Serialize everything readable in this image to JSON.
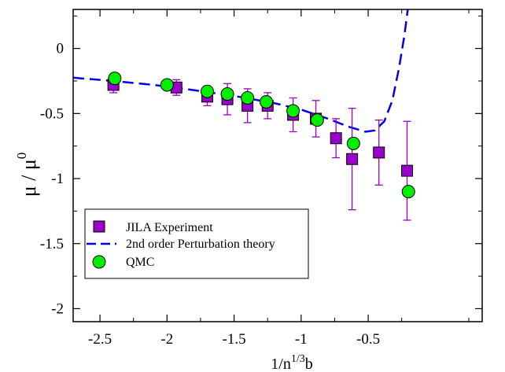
{
  "chart_data": {
    "type": "scatter",
    "xlabel": {
      "main": "1/n",
      "sup": "1/3",
      "sub": "b"
    },
    "ylabel": {
      "main": "μ / μ",
      "sup": "0"
    },
    "xlim": [
      -2.7,
      0.35
    ],
    "ylim": [
      -2.1,
      0.3
    ],
    "x_ticks": [
      {
        "value": -2.5,
        "label": "-2.5"
      },
      {
        "value": -2.0,
        "label": "-2"
      },
      {
        "value": -1.5,
        "label": "-1.5"
      },
      {
        "value": -1.0,
        "label": "-1"
      },
      {
        "value": -0.5,
        "label": "-0.5"
      }
    ],
    "y_ticks": [
      {
        "value": 0.0,
        "label": "0"
      },
      {
        "value": -0.5,
        "label": "-0.5"
      },
      {
        "value": -1.0,
        "label": "-1"
      },
      {
        "value": -1.5,
        "label": "-1.5"
      },
      {
        "value": -2.0,
        "label": "-2"
      }
    ],
    "grid": false,
    "legend_position": "bottom-left",
    "series": [
      {
        "name": "JILA Experiment",
        "marker": "square",
        "color": "#9900cc",
        "points": [
          {
            "x": -2.4,
            "y": -0.28,
            "err": 0.06
          },
          {
            "x": -1.93,
            "y": -0.3,
            "err": 0.06
          },
          {
            "x": -1.7,
            "y": -0.37,
            "err": 0.07
          },
          {
            "x": -1.55,
            "y": -0.39,
            "err": 0.12
          },
          {
            "x": -1.4,
            "y": -0.44,
            "err": 0.13
          },
          {
            "x": -1.25,
            "y": -0.44,
            "err": 0.1
          },
          {
            "x": -1.06,
            "y": -0.51,
            "err": 0.13
          },
          {
            "x": -0.89,
            "y": -0.54,
            "err": 0.14
          },
          {
            "x": -0.74,
            "y": -0.69,
            "err": 0.15
          },
          {
            "x": -0.62,
            "y": -0.85,
            "err": 0.39
          },
          {
            "x": -0.42,
            "y": -0.8,
            "err": 0.25
          },
          {
            "x": -0.21,
            "y": -0.94,
            "err": 0.38
          }
        ]
      },
      {
        "name": "2nd order Perturbation theory",
        "marker": "dashed-line",
        "color": "#0000ee",
        "points": [
          {
            "x": -2.7,
            "y": -0.225
          },
          {
            "x": -2.4,
            "y": -0.25
          },
          {
            "x": -2.1,
            "y": -0.28
          },
          {
            "x": -1.8,
            "y": -0.32
          },
          {
            "x": -1.5,
            "y": -0.365
          },
          {
            "x": -1.2,
            "y": -0.42
          },
          {
            "x": -1.0,
            "y": -0.47
          },
          {
            "x": -0.8,
            "y": -0.54
          },
          {
            "x": -0.65,
            "y": -0.6
          },
          {
            "x": -0.52,
            "y": -0.64
          },
          {
            "x": -0.45,
            "y": -0.63
          },
          {
            "x": -0.38,
            "y": -0.56
          },
          {
            "x": -0.32,
            "y": -0.4
          },
          {
            "x": -0.27,
            "y": -0.15
          },
          {
            "x": -0.23,
            "y": 0.1
          },
          {
            "x": -0.205,
            "y": 0.3
          }
        ]
      },
      {
        "name": "QMC",
        "marker": "circle",
        "color": "#00ee00",
        "points": [
          {
            "x": -2.39,
            "y": -0.23,
            "err": 0.03
          },
          {
            "x": -2.0,
            "y": -0.28,
            "err": 0
          },
          {
            "x": -1.7,
            "y": -0.33,
            "err": 0
          },
          {
            "x": -1.55,
            "y": -0.35,
            "err": 0
          },
          {
            "x": -1.4,
            "y": -0.38,
            "err": 0
          },
          {
            "x": -1.26,
            "y": -0.41,
            "err": 0
          },
          {
            "x": -1.06,
            "y": -0.48,
            "err": 0
          },
          {
            "x": -0.88,
            "y": -0.55,
            "err": 0
          },
          {
            "x": -0.61,
            "y": -0.73,
            "err": 0
          },
          {
            "x": -0.2,
            "y": -1.1,
            "err": 0
          }
        ]
      }
    ]
  }
}
